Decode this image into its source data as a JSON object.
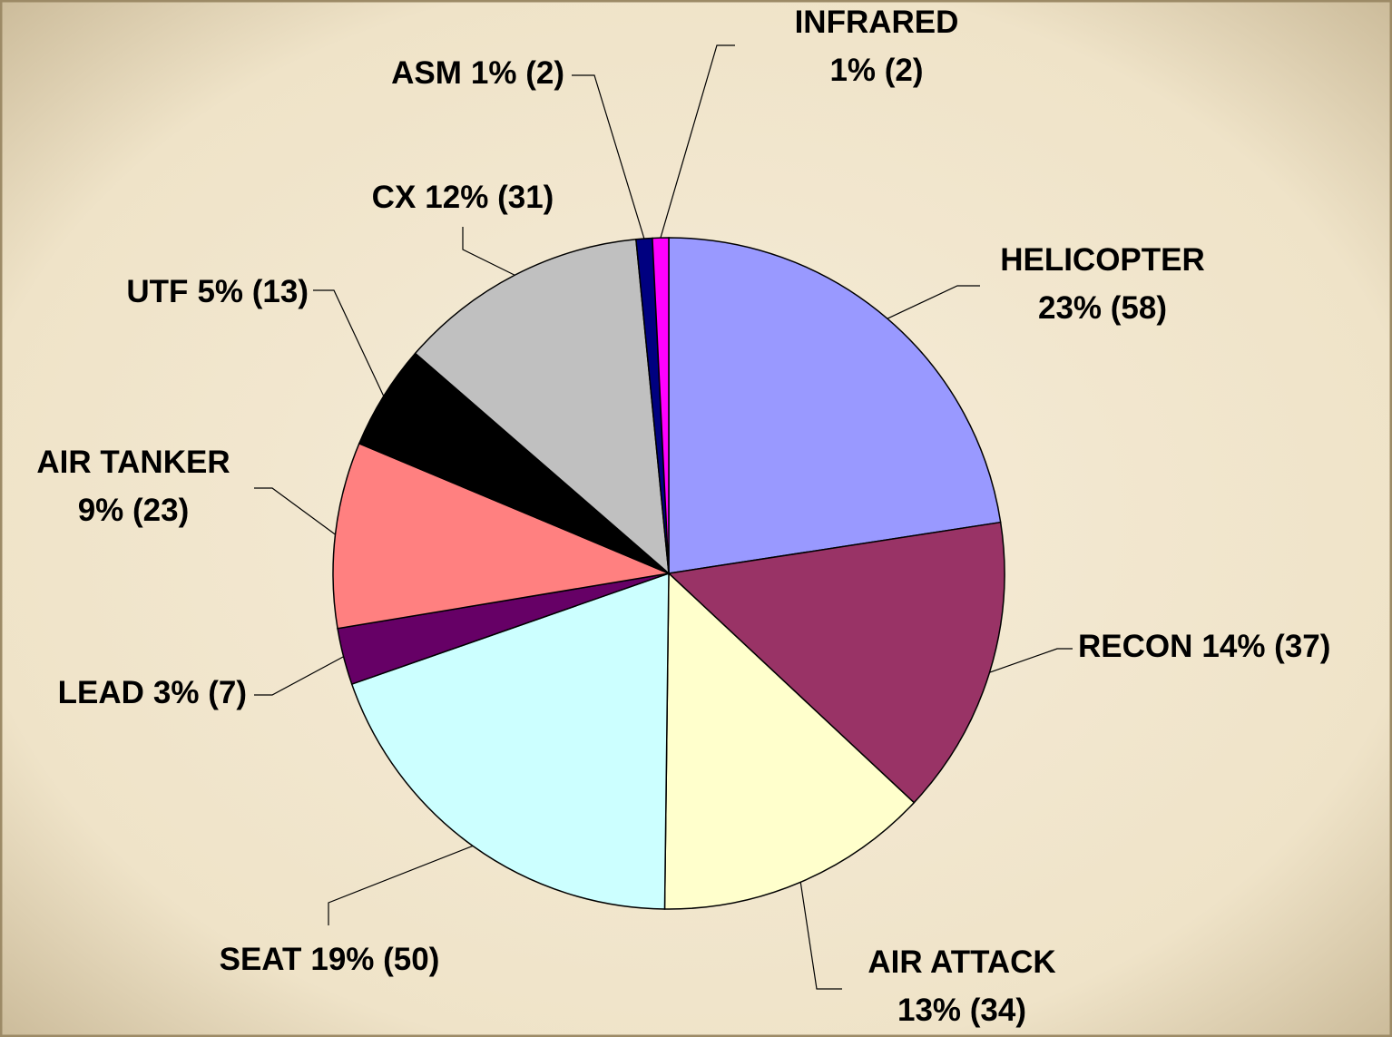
{
  "chart_data": {
    "type": "pie",
    "categories": [
      "HELICOPTER",
      "RECON",
      "AIR ATTACK",
      "SEAT",
      "LEAD",
      "AIR TANKER",
      "UTF",
      "CX",
      "ASM",
      "INFRARED"
    ],
    "values": [
      58,
      37,
      34,
      50,
      7,
      23,
      13,
      31,
      2,
      2
    ],
    "value_labels": [
      "23% (58)",
      "14% (37)",
      "13% (34)",
      "19% (50)",
      "3% (7)",
      "9% (23)",
      "5% (13)",
      "12% (31)",
      "1% (2)",
      "1% (2)"
    ],
    "colors": [
      "#9999ff",
      "#993366",
      "#ffffcc",
      "#ccffff",
      "#660066",
      "#ff8080",
      "#000000",
      "#c0c0c0",
      "#000080",
      "#ff00ff"
    ]
  }
}
